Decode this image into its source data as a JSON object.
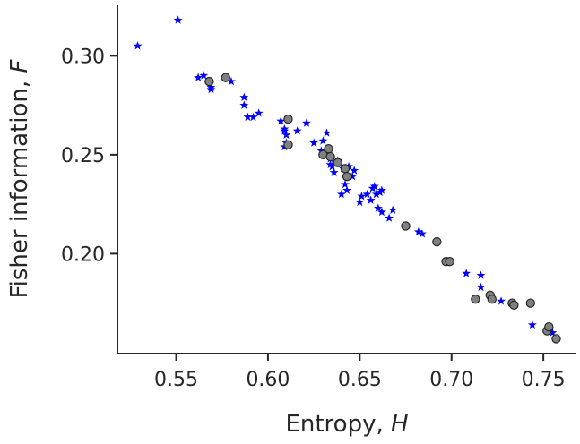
{
  "chart_data": {
    "type": "scatter",
    "xlabel_main": "Entropy, ",
    "xlabel_var": "H",
    "ylabel_main": "Fisher information, ",
    "ylabel_var": "F",
    "xlim": [
      0.518,
      0.768
    ],
    "ylim": [
      0.1495,
      0.3255
    ],
    "xticks": [
      0.55,
      0.6,
      0.65,
      0.7,
      0.75
    ],
    "yticks": [
      0.2,
      0.25,
      0.3
    ],
    "xtick_labels": [
      "0.55",
      "0.60",
      "0.65",
      "0.70",
      "0.75"
    ],
    "ytick_labels": [
      "0.20",
      "0.25",
      "0.30"
    ],
    "series": [
      {
        "marker": "star",
        "color": "#0000ff",
        "points": [
          [
            0.529,
            0.305
          ],
          [
            0.551,
            0.318
          ],
          [
            0.562,
            0.289
          ],
          [
            0.565,
            0.29
          ],
          [
            0.569,
            0.283
          ],
          [
            0.569,
            0.284
          ],
          [
            0.58,
            0.287
          ],
          [
            0.587,
            0.279
          ],
          [
            0.587,
            0.275
          ],
          [
            0.589,
            0.269
          ],
          [
            0.592,
            0.269
          ],
          [
            0.595,
            0.271
          ],
          [
            0.607,
            0.267
          ],
          [
            0.609,
            0.262
          ],
          [
            0.609,
            0.263
          ],
          [
            0.61,
            0.26
          ],
          [
            0.61,
            0.256
          ],
          [
            0.609,
            0.254
          ],
          [
            0.616,
            0.262
          ],
          [
            0.621,
            0.266
          ],
          [
            0.625,
            0.256
          ],
          [
            0.629,
            0.252
          ],
          [
            0.63,
            0.257
          ],
          [
            0.632,
            0.261
          ],
          [
            0.634,
            0.248
          ],
          [
            0.634,
            0.245
          ],
          [
            0.635,
            0.244
          ],
          [
            0.636,
            0.241
          ],
          [
            0.638,
            0.247
          ],
          [
            0.64,
            0.23
          ],
          [
            0.641,
            0.243
          ],
          [
            0.642,
            0.235
          ],
          [
            0.643,
            0.232
          ],
          [
            0.644,
            0.244
          ],
          [
            0.646,
            0.239
          ],
          [
            0.647,
            0.242
          ],
          [
            0.65,
            0.226
          ],
          [
            0.651,
            0.229
          ],
          [
            0.654,
            0.23
          ],
          [
            0.656,
            0.227
          ],
          [
            0.657,
            0.233
          ],
          [
            0.658,
            0.234
          ],
          [
            0.659,
            0.23
          ],
          [
            0.661,
            0.231
          ],
          [
            0.662,
            0.232
          ],
          [
            0.66,
            0.223
          ],
          [
            0.662,
            0.221
          ],
          [
            0.666,
            0.218
          ],
          [
            0.668,
            0.222
          ],
          [
            0.682,
            0.211
          ],
          [
            0.684,
            0.21
          ],
          [
            0.708,
            0.19
          ],
          [
            0.716,
            0.189
          ],
          [
            0.716,
            0.183
          ],
          [
            0.727,
            0.176
          ],
          [
            0.733,
            0.175
          ],
          [
            0.744,
            0.164
          ],
          [
            0.752,
            0.161
          ],
          [
            0.755,
            0.16
          ]
        ]
      },
      {
        "marker": "circle",
        "color": "#808080",
        "points": [
          [
            0.568,
            0.287
          ],
          [
            0.577,
            0.289
          ],
          [
            0.611,
            0.268
          ],
          [
            0.611,
            0.255
          ],
          [
            0.63,
            0.25
          ],
          [
            0.633,
            0.253
          ],
          [
            0.634,
            0.249
          ],
          [
            0.638,
            0.246
          ],
          [
            0.642,
            0.243
          ],
          [
            0.643,
            0.239
          ],
          [
            0.675,
            0.214
          ],
          [
            0.692,
            0.206
          ],
          [
            0.697,
            0.196
          ],
          [
            0.699,
            0.196
          ],
          [
            0.713,
            0.177
          ],
          [
            0.721,
            0.179
          ],
          [
            0.722,
            0.177
          ],
          [
            0.733,
            0.175
          ],
          [
            0.734,
            0.174
          ],
          [
            0.743,
            0.175
          ],
          [
            0.752,
            0.161
          ],
          [
            0.753,
            0.163
          ],
          [
            0.757,
            0.157
          ]
        ]
      }
    ]
  }
}
